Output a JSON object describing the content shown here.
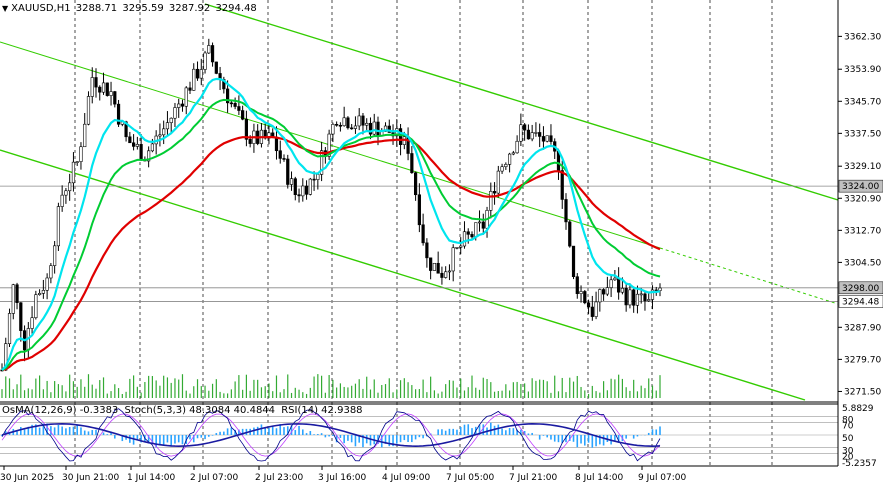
{
  "header": {
    "symbol": "XAUUSD,H1",
    "open": "3288.71",
    "high": "3295.59",
    "low": "3287.92",
    "close": "3294.48"
  },
  "indicator_header": {
    "osma": "OsMA(12,26,9) -0.3383",
    "stoch": "Stoch(5,3,3) 48.3084 40.4844",
    "rsi": "RSI(14) 42.9388"
  },
  "chart_data": {
    "type": "candlestick",
    "symbol": "XAUUSD",
    "timeframe": "H1",
    "y_ticks": [
      "3362.30",
      "3353.90",
      "3345.70",
      "3337.50",
      "3329.10",
      "3320.90",
      "3312.70",
      "3304.50",
      "3287.90",
      "3279.70",
      "3271.50"
    ],
    "y_tick_values": [
      3362.3,
      3353.9,
      3345.7,
      3337.5,
      3329.1,
      3320.9,
      3312.7,
      3304.5,
      3287.9,
      3279.7,
      3271.5
    ],
    "x_ticks": [
      "30 Jun 2025",
      "30 Jun 21:00",
      "1 Jul 14:00",
      "2 Jul 07:00",
      "2 Jul 23:00",
      "3 Jul 16:00",
      "4 Jul 09:00",
      "7 Jul 05:00",
      "7 Jul 21:00",
      "8 Jul 14:00",
      "9 Jul 07:00"
    ],
    "price_tags": [
      {
        "label": "3324.00",
        "value": 3324.0,
        "bg": "#c0c0c0",
        "fg": "#000000"
      },
      {
        "label": "3298.00",
        "value": 3298.0,
        "bg": "#c0c0c0",
        "fg": "#000000"
      },
      {
        "label": "3294.48",
        "value": 3294.48,
        "bg": "#ffffff",
        "fg": "#000000"
      }
    ],
    "horizontal_levels": [
      3324.0,
      3298.0,
      3294.48
    ],
    "ylim": [
      3268.8,
      3371.6
    ],
    "indicator_ticks": [
      "5.8829",
      "80",
      "70",
      "50",
      "30",
      "20",
      "-5.2357"
    ],
    "indicator_levels": [
      80,
      70,
      50,
      30,
      20
    ],
    "colors": {
      "background": "#ffffff",
      "candles": "#000000",
      "ema_fast": "#00e5ee",
      "ema_mid": "#00cc33",
      "ema_slow": "#e00000",
      "channel": "#33cc00",
      "osma": "#29a3ff",
      "stoch_main": "#00008b",
      "stoch_signal": "#c040ff",
      "rsi": "#1a1aa0",
      "volume": "#33aa33",
      "grid": "#000000"
    },
    "grid": true
  }
}
